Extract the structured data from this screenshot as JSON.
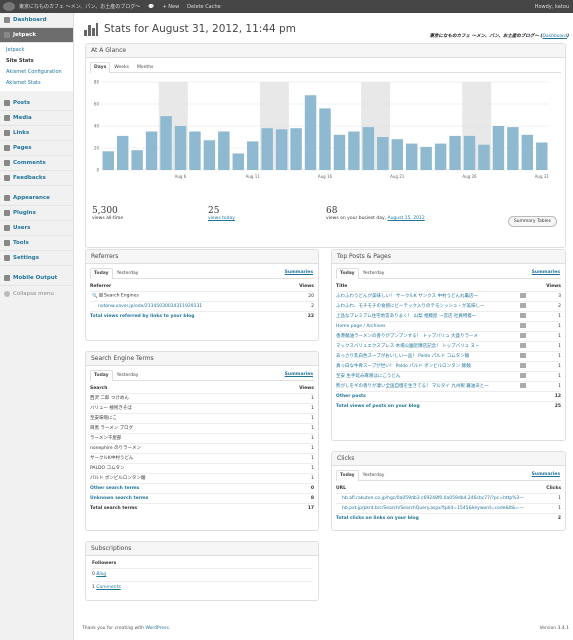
{
  "adminbar": {
    "site": "東京になものカフェ ～メン、パン、お土産のブログ～",
    "comments": "",
    "new": "+ New",
    "cache": "Delete Cache",
    "howdy": "Howdy, katou"
  },
  "menu": {
    "dashboard": "Dashboard",
    "jetpack": "Jetpack",
    "sub": [
      "Jetpack",
      "Site Stats",
      "Akismet Configuration",
      "Akismet Stats"
    ],
    "items": [
      "Posts",
      "Media",
      "Links",
      "Pages",
      "Comments",
      "Feedbacks"
    ],
    "items2": [
      "Appearance",
      "Plugins",
      "Users",
      "Tools",
      "Settings"
    ],
    "mobile": "Mobile Output",
    "collapse": "Collapse menu"
  },
  "page": {
    "title": "Stats for August 31, 2012, 11:44 pm",
    "blog_name": "東京になものカフェ ～メン、パン、お土産のブログ～",
    "dashboard_link": "Dashboard"
  },
  "glance": {
    "title": "At A Glance",
    "tabs": [
      "Days",
      "Weeks",
      "Months"
    ],
    "all_time": "5,300",
    "all_time_label": "views all-time",
    "today": "25",
    "today_label": "views today",
    "busiest": "68",
    "busiest_label": "views on your busiest day,",
    "busiest_date": "August 15, 2012",
    "summary_button": "Summary Tables"
  },
  "chart_data": {
    "type": "bar",
    "ylim": [
      0,
      80
    ],
    "yticks": [
      "80",
      "60",
      "40",
      "20",
      "0"
    ],
    "xticks": [
      {
        "label": "Aug 6",
        "i": 5
      },
      {
        "label": "Aug 11",
        "i": 10
      },
      {
        "label": "Aug 16",
        "i": 15
      },
      {
        "label": "Aug 21",
        "i": 20
      },
      {
        "label": "Aug 26",
        "i": 25
      },
      {
        "label": "Aug 31",
        "i": 30
      }
    ],
    "values": [
      17,
      31,
      18,
      35,
      49,
      40,
      35,
      27,
      35,
      15,
      26,
      38,
      37,
      38,
      68,
      56,
      32,
      35,
      39,
      30,
      28,
      24,
      21,
      24,
      31,
      31,
      23,
      40,
      39,
      32,
      25
    ],
    "weekend_bands": [
      [
        4,
        5
      ],
      [
        11,
        12
      ],
      [
        18,
        19
      ],
      [
        25,
        26
      ]
    ],
    "bar_color": "#8eb9d0",
    "band_color": "#e8e8e8"
  },
  "referrers": {
    "title": "Referrers",
    "tabs": [
      "Today",
      "Yesterday"
    ],
    "summaries": "Summaries",
    "headers": [
      "Referrer",
      "Views"
    ],
    "rows": [
      {
        "name": "Search Engines",
        "views": "20"
      },
      {
        "name": "notonw.xaver.jp/ode/21345030034311929131",
        "views": "2"
      }
    ],
    "total_label": "Total views referred by links to your blog",
    "total": "22"
  },
  "search": {
    "title": "Search Engine Terms",
    "tabs": [
      "Today",
      "Yesterday"
    ],
    "summaries": "Summaries",
    "headers": [
      "Search",
      "Views"
    ],
    "rows": [
      {
        "term": "西沢 二郎 つけめん",
        "views": "1"
      },
      {
        "term": "バリュー 極残きそば",
        "views": "1"
      },
      {
        "term": "至安味噌にこ",
        "views": "1"
      },
      {
        "term": "目黒 ラーメン ブログ",
        "views": "1"
      },
      {
        "term": "ラーメン千屋部",
        "views": "1"
      },
      {
        "term": "nonephire のりラーメン",
        "views": "1"
      },
      {
        "term": "サークルK中村うどん",
        "views": "1"
      },
      {
        "term": "PALDO コムタン",
        "views": "1"
      },
      {
        "term": "パルド ボンビルロンタン麺",
        "views": "1"
      }
    ],
    "other_label": "Other search terms",
    "other": "0",
    "unknown_label": "Unknown search terms",
    "unknown": "8",
    "total_label": "Total search terms",
    "total": "17"
  },
  "subscriptions": {
    "title": "Subscriptions",
    "header": "Followers",
    "rows": [
      {
        "count": "0",
        "label": "Blog"
      },
      {
        "count": "1",
        "label": "Comments"
      }
    ]
  },
  "topposts": {
    "title": "Top Posts & Pages",
    "tabs": [
      "Today",
      "Yesterday"
    ],
    "summaries": "Summaries",
    "headers": [
      "Title",
      "Views"
    ],
    "rows": [
      {
        "title": "ふわふわうどんが美味しい！ サークルK サンクス 中村うどん丸亀店一",
        "views": "3"
      },
      {
        "title": "ふわふわ、モチモチの食感にビーテック入りのテモンッシュ・が美味しー",
        "views": "2"
      },
      {
        "title": "上品なプレミアム住宅地宮ありまく！ 山梨 相模屋 一宮店 社員特着一",
        "views": "1"
      },
      {
        "title": "Home page / Archives",
        "views": "1"
      },
      {
        "title": "香港麺油ラーメンの香りがプンプンする！ トップバリュ 大盛りラーメ",
        "views": "1"
      },
      {
        "title": "マックスバリュエクスプレス 木場公園近隣店記念！ トップバリュ ヌー",
        "views": "1"
      },
      {
        "title": "あっさり乳白色スープがおいしい一品！ Paldo パルド コムタン麺",
        "views": "1"
      },
      {
        "title": "真っ白な牛骨スープが世い！ Paldo パルド ボンビルロンタン 豚麺",
        "views": "1"
      },
      {
        "title": "至安 生手延み麻噌はにこうどん",
        "views": "1"
      },
      {
        "title": "熊がしをギの香りが凄い全国自慢を生きてる！ マルタイ 九州製 醤油あと一",
        "views": "1"
      }
    ],
    "other_label": "Other posts",
    "other": "12",
    "total_label": "Total views of posts on your blog",
    "total": "25"
  },
  "clicks": {
    "title": "Clicks",
    "tabs": [
      "Today",
      "Yesterday"
    ],
    "summaries": "Summaries",
    "headers": [
      "URL",
      "Clicks"
    ],
    "rows": [
      {
        "url": "hb.afl.rakuten.co.jp/hgc/0a059db3.c69248f0.0a059db4.246cbc77/?pc=http%3—",
        "clicks": "1"
      },
      {
        "url": "hb.pxt.jp/pknt.b/c/Search/SearchQuery.aspx?tplid=1545&keyword=code&lt&=—",
        "clicks": "1"
      }
    ],
    "total_label": "Total clicks on links on your blog",
    "total": "2"
  },
  "footer": {
    "thanks": "Thank you for creating with",
    "wp": "WordPress",
    "version": "Version 3.4.1"
  }
}
